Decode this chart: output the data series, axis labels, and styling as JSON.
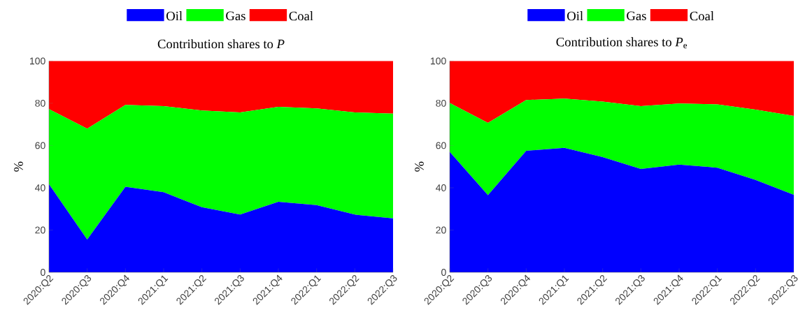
{
  "chart_data": [
    {
      "type": "area",
      "stacked": true,
      "title": "Contribution shares to *P*",
      "ylabel": "%",
      "categories": [
        "2020:Q2",
        "2020:Q3",
        "2020:Q4",
        "2021:Q1",
        "2021:Q2",
        "2021:Q3",
        "2021:Q4",
        "2022:Q1",
        "2022:Q2",
        "2022:Q3"
      ],
      "ylim": [
        0,
        100
      ],
      "yticks": [
        0,
        20,
        40,
        60,
        80,
        100
      ],
      "legend": "top",
      "series": [
        {
          "name": "Oil",
          "color": "#0000ff",
          "values": [
            41.7,
            15.5,
            40.5,
            37.9,
            30.8,
            27.3,
            33.4,
            31.8,
            27.3,
            25.5
          ]
        },
        {
          "name": "Gas",
          "color": "#00ff00",
          "values": [
            35.5,
            52.5,
            38.7,
            40.7,
            45.8,
            48.4,
            44.9,
            45.8,
            48.4,
            49.6
          ]
        },
        {
          "name": "Coal",
          "color": "#ff0000",
          "values": [
            22.8,
            32.0,
            20.8,
            21.4,
            23.4,
            24.3,
            21.7,
            22.4,
            24.3,
            24.9
          ]
        }
      ]
    },
    {
      "type": "area",
      "stacked": true,
      "title": "Contribution shares to *P*$_{e}$",
      "ylabel": "%",
      "categories": [
        "2020:Q2",
        "2020:Q3",
        "2020:Q4",
        "2021:Q1",
        "2021:Q2",
        "2021:Q3",
        "2021:Q4",
        "2022:Q1",
        "2022:Q2",
        "2022:Q3"
      ],
      "ylim": [
        0,
        100
      ],
      "yticks": [
        0,
        20,
        40,
        60,
        80,
        100
      ],
      "legend": "top",
      "series": [
        {
          "name": "Oil",
          "color": "#0000ff",
          "values": [
            57.0,
            36.5,
            57.5,
            58.9,
            54.5,
            48.9,
            51.0,
            49.5,
            43.7,
            36.7
          ]
        },
        {
          "name": "Gas",
          "color": "#00ff00",
          "values": [
            23.1,
            34.2,
            24.0,
            23.3,
            26.3,
            29.7,
            28.9,
            30.0,
            33.3,
            37.3
          ]
        },
        {
          "name": "Coal",
          "color": "#ff0000",
          "values": [
            19.9,
            29.3,
            18.5,
            17.8,
            19.2,
            21.4,
            20.1,
            20.5,
            23.0,
            26.0
          ]
        }
      ]
    }
  ]
}
